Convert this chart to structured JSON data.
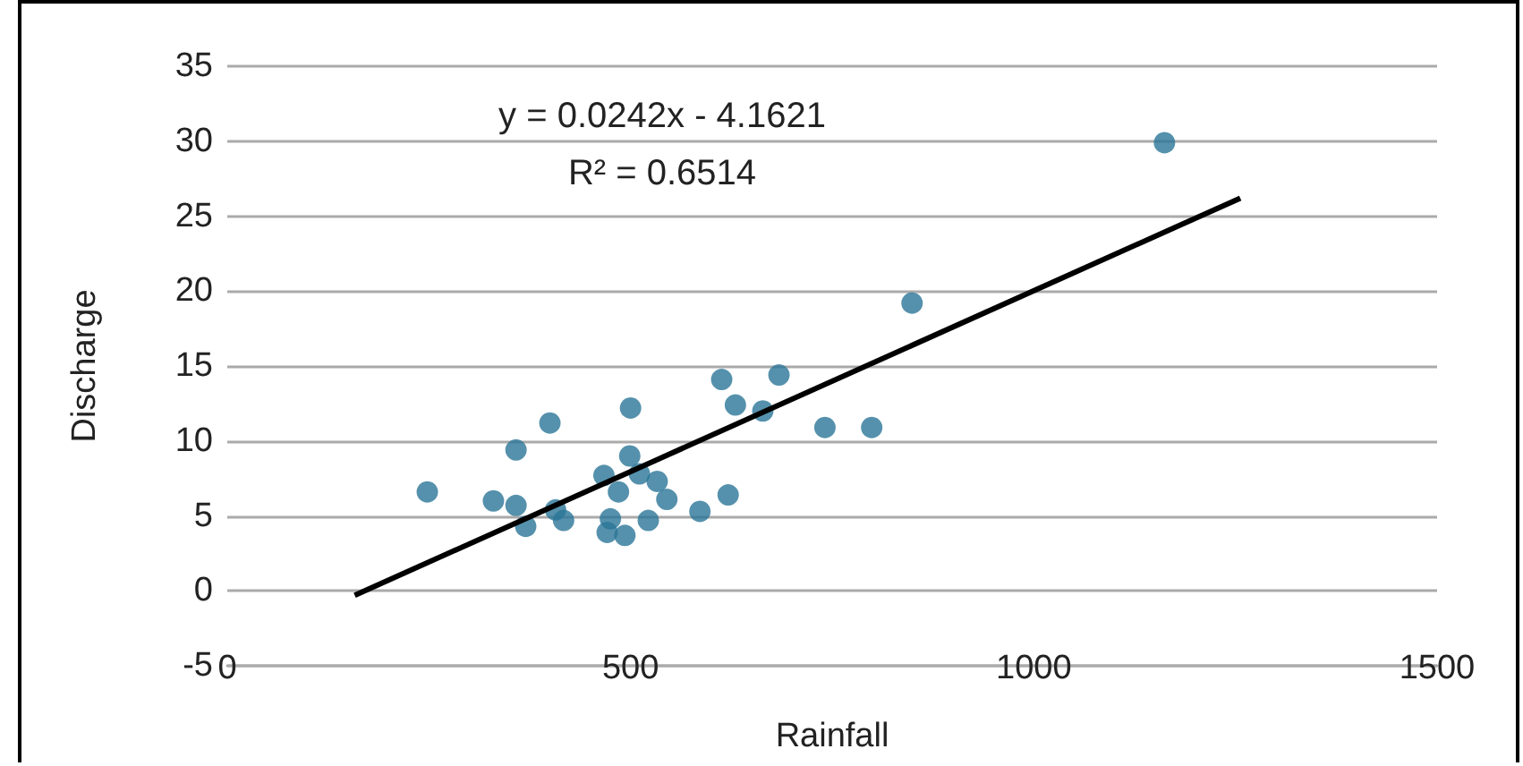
{
  "chart_data": {
    "type": "scatter",
    "xlabel": "Rainfall",
    "ylabel": "Discharge",
    "annotations": [
      "y = 0.0242x - 4.1621",
      "R² = 0.6514"
    ],
    "series": [
      {
        "type": "scatter",
        "color": "#2b7597",
        "marker": "circle",
        "x": [
          248,
          330,
          358,
          358,
          370,
          400,
          407,
          417,
          467,
          475,
          471,
          485,
          493,
          499,
          500,
          511,
          522,
          533,
          545,
          586,
          613,
          621,
          630,
          664,
          684,
          741,
          799,
          849,
          1162
        ],
        "values": [
          6.6,
          6.0,
          9.4,
          5.7,
          4.3,
          11.2,
          5.4,
          4.7,
          7.7,
          4.8,
          3.9,
          6.6,
          3.7,
          9.0,
          12.2,
          7.8,
          4.7,
          7.3,
          6.1,
          5.3,
          14.1,
          6.4,
          12.4,
          12.0,
          14.4,
          10.9,
          10.9,
          19.2,
          29.9
        ]
      },
      {
        "type": "line",
        "color": "#000000",
        "marker": "none",
        "x": [
          158,
          1256
        ],
        "values": [
          -0.3,
          26.2
        ]
      }
    ],
    "xlim": [
      0,
      1500
    ],
    "xticks": [
      0,
      500,
      1000,
      1500
    ],
    "ylim": [
      -5,
      35
    ],
    "yticks": [
      -5,
      0,
      5,
      10,
      15,
      20,
      25,
      30,
      35
    ],
    "grid": "y"
  }
}
